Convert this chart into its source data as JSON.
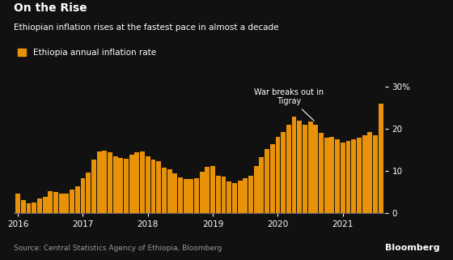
{
  "title": "On the Rise",
  "subtitle": "Ethiopian inflation rises at the fastest pace in almost a decade",
  "legend_label": "Ethiopia annual inflation rate",
  "source": "Source: Central Statistics Agency of Ethiopia, Bloomberg",
  "bar_color": "#E8920A",
  "bg_color": "#111111",
  "text_color": "#ffffff",
  "source_color": "#999999",
  "annotation_text": "War breaks out in\nTigray",
  "annotation_bar_index": 55,
  "ylim": [
    0,
    32
  ],
  "yticks": [
    0,
    10,
    20,
    30
  ],
  "ytick_labels": [
    "0",
    "10",
    "20",
    "30%"
  ],
  "values": [
    4.6,
    3.2,
    2.4,
    2.5,
    3.5,
    3.8,
    5.3,
    5.1,
    4.6,
    4.6,
    5.6,
    6.3,
    8.2,
    9.6,
    12.6,
    14.7,
    14.8,
    14.4,
    13.4,
    13.0,
    12.9,
    13.8,
    14.5,
    14.7,
    13.4,
    12.7,
    12.3,
    10.8,
    10.3,
    9.5,
    8.5,
    8.1,
    8.0,
    8.3,
    9.8,
    11.0,
    11.2,
    8.9,
    8.6,
    7.5,
    7.2,
    7.8,
    8.3,
    8.9,
    11.2,
    13.3,
    15.2,
    16.4,
    18.0,
    19.2,
    21.0,
    22.8,
    21.9,
    21.0,
    21.7,
    21.0,
    19.0,
    17.8,
    18.0,
    17.5,
    16.8,
    17.2,
    17.5,
    17.8,
    18.5,
    19.2,
    18.5,
    26.0
  ],
  "x_tick_positions": [
    0,
    12,
    24,
    36,
    48,
    60
  ],
  "x_tick_labels": [
    "2016",
    "2017",
    "2018",
    "2019",
    "2020",
    "2021"
  ]
}
